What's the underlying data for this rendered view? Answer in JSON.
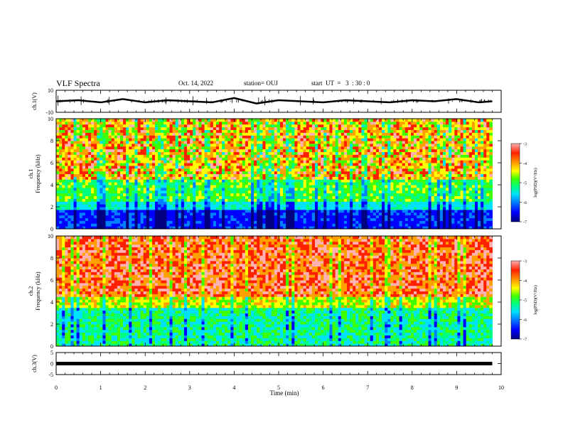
{
  "header": {
    "title": "VLF Spectra",
    "date": "Oct. 14, 2022",
    "station": "station= OUJ",
    "start": "start  UT  =   3  : 30 : 0"
  },
  "colors": {
    "spectrogram_scale": [
      "#000080",
      "#0000ff",
      "#0080ff",
      "#00e0ff",
      "#00ff80",
      "#40ff00",
      "#ffff00",
      "#ffa000",
      "#ff2000",
      "#ffb0b0"
    ],
    "waveform": "#000000"
  },
  "chart_data": [
    {
      "type": "line",
      "panel": "ch1-waveform",
      "ylabel": "ch.1(V)",
      "ylim": [
        -10,
        10
      ],
      "yticks": [
        "10",
        "-10"
      ],
      "x": [
        0,
        0.5,
        1,
        1.5,
        2,
        2.5,
        3,
        3.5,
        4,
        4.5,
        5,
        5.5,
        6,
        6.5,
        7,
        7.5,
        8,
        8.5,
        9,
        9.5,
        9.8
      ],
      "values": [
        0,
        1,
        -1,
        2,
        -1,
        1,
        0,
        -1,
        3,
        -2,
        1,
        0,
        -1,
        1,
        0,
        -1,
        1,
        0,
        2,
        -1,
        0
      ]
    },
    {
      "type": "heatmap",
      "panel": "ch1-spectrogram",
      "ylabel_top": "ch.1",
      "ylabel": "Frequency (kHz)",
      "ylim": [
        0,
        10
      ],
      "yticks": [
        "0",
        "2",
        "4",
        "6",
        "8",
        "10"
      ],
      "colorbar": {
        "label": "log(PSD)(V²/Hz)",
        "range": [
          -7,
          -3
        ],
        "ticks": [
          "-3",
          "-4",
          "-5",
          "-6",
          "-7"
        ]
      }
    },
    {
      "type": "heatmap",
      "panel": "ch2-spectrogram",
      "ylabel_top": "ch.2",
      "ylabel": "Frequency (kHz)",
      "ylim": [
        0,
        10
      ],
      "yticks": [
        "0",
        "2",
        "4",
        "6",
        "8",
        "10"
      ],
      "colorbar": {
        "label": "log(PSD)(V²/Hz)",
        "range": [
          -7,
          -3
        ],
        "ticks": [
          "-3",
          "-4",
          "-5",
          "-6",
          "-7"
        ]
      }
    },
    {
      "type": "line",
      "panel": "ch3-waveform",
      "ylabel": "ch.3(V)",
      "ylim": [
        -5,
        5
      ],
      "yticks": [
        "5",
        "0",
        "-5"
      ],
      "x": [
        0,
        9.8
      ],
      "values": [
        0,
        0
      ]
    }
  ],
  "xaxis": {
    "label": "Time  (min)",
    "xlim": [
      0,
      10
    ],
    "ticks": [
      "0",
      "1",
      "2",
      "3",
      "4",
      "5",
      "6",
      "7",
      "8",
      "9",
      "10"
    ]
  }
}
